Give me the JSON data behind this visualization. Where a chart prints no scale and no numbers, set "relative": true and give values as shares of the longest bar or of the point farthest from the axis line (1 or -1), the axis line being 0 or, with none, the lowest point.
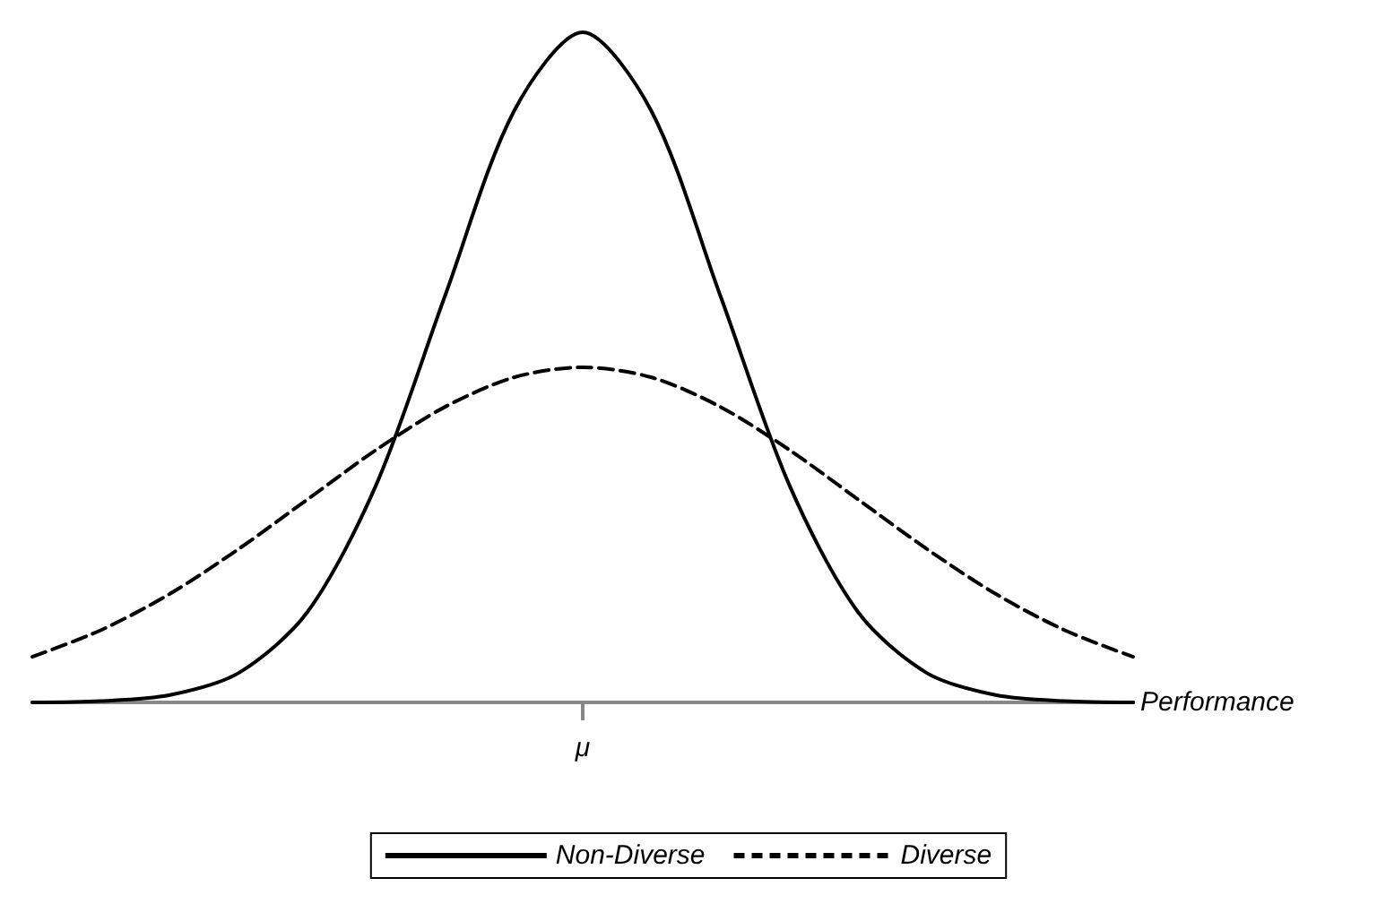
{
  "chart_data": {
    "type": "line",
    "relative": true,
    "xlabel": "Performance",
    "categories": [
      null,
      null,
      null,
      null,
      null,
      null,
      null,
      null,
      null,
      null,
      null,
      null,
      null,
      null,
      null,
      null,
      null
    ],
    "annotations": [
      "μ"
    ],
    "grid": false,
    "legend": "bottom",
    "marker": "none",
    "series": [
      {
        "name": "Non-Diverse",
        "color": "#000000",
        "line_style": "solid",
        "values": [
          0,
          0.002,
          0.011,
          0.044,
          0.135,
          0.325,
          0.607,
          0.882,
          1,
          0.882,
          0.607,
          0.325,
          0.135,
          0.044,
          0.011,
          0.002,
          0
        ]
      },
      {
        "name": "Diverse",
        "color": "#000000",
        "line_style": "dashed",
        "values": [
          0.068,
          0.108,
          0.162,
          0.229,
          0.303,
          0.377,
          0.441,
          0.485,
          0.5,
          0.485,
          0.441,
          0.377,
          0.303,
          0.229,
          0.162,
          0.108,
          0.068
        ]
      }
    ]
  }
}
